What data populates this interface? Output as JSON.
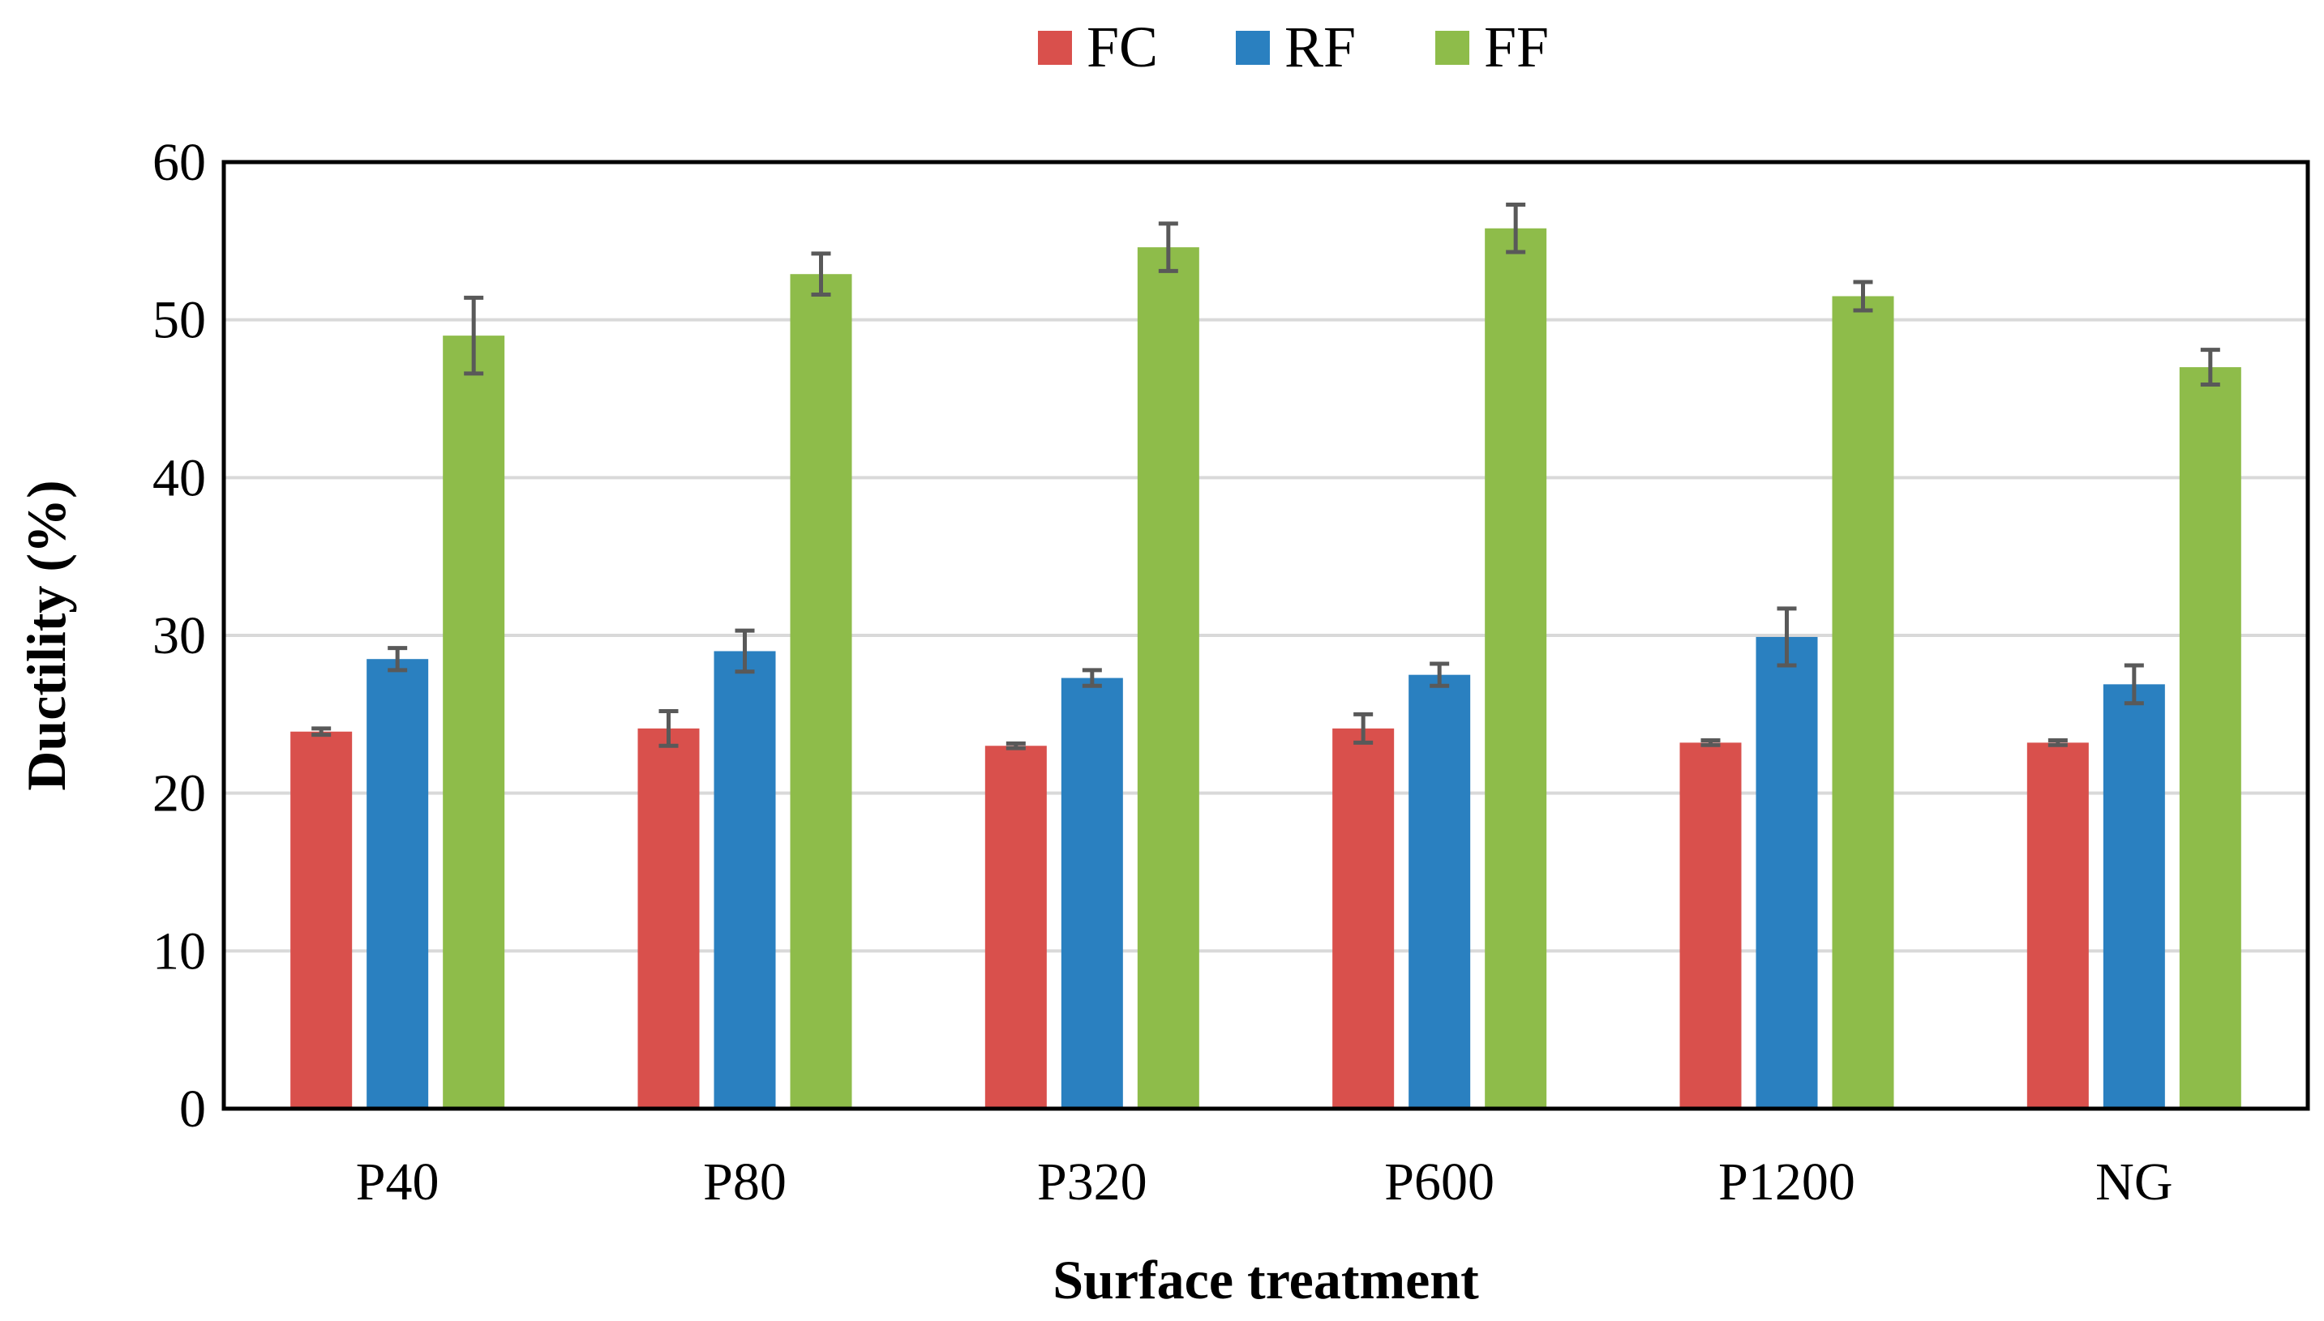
{
  "chart_data": {
    "type": "bar",
    "title": "",
    "xlabel": "Surface treatment",
    "ylabel": "Ductility (%)",
    "ylim": [
      0,
      60
    ],
    "yticks": [
      0,
      10,
      20,
      30,
      40,
      50,
      60
    ],
    "grid": "horizontal",
    "legend_position": "top",
    "categories": [
      "P40",
      "P80",
      "P320",
      "P600",
      "P1200",
      "NG"
    ],
    "series": [
      {
        "name": "FC",
        "color": "#d9504c",
        "values": [
          23.9,
          24.1,
          23.0,
          24.1,
          23.2,
          23.2
        ],
        "errors": [
          0.2,
          1.1,
          0.15,
          0.9,
          0.15,
          0.15
        ]
      },
      {
        "name": "RF",
        "color": "#2a80c0",
        "values": [
          28.5,
          29.0,
          27.3,
          27.5,
          29.9,
          26.9
        ],
        "errors": [
          0.7,
          1.3,
          0.5,
          0.7,
          1.8,
          1.2
        ]
      },
      {
        "name": "FF",
        "color": "#8ebc4a",
        "values": [
          49.0,
          52.9,
          54.6,
          55.8,
          51.5,
          47.0
        ],
        "errors": [
          2.4,
          1.3,
          1.5,
          1.5,
          0.9,
          1.1
        ]
      }
    ],
    "error_bar_color": "#595959"
  }
}
